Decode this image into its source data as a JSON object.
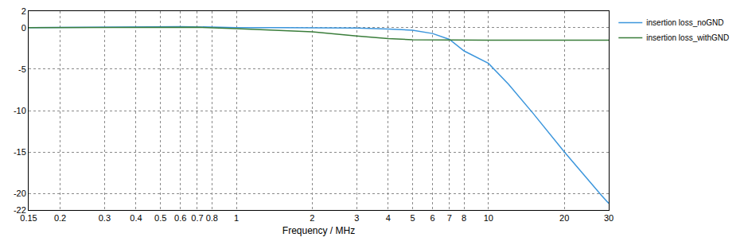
{
  "chart_data": {
    "type": "line",
    "x_label": "Frequency / MHz",
    "log": "x",
    "grid": true,
    "legend": "right",
    "xlim": [
      0.15,
      30
    ],
    "xticks": [
      0.15,
      0.2,
      0.3,
      0.4,
      0.5,
      0.6,
      0.7,
      0.8,
      1,
      2,
      3,
      4,
      5,
      6,
      7,
      8,
      10,
      20,
      30
    ],
    "ylim": [
      -22,
      2
    ],
    "yticks": [
      2,
      0,
      -5,
      -10,
      -15,
      -20,
      -22
    ],
    "series": [
      {
        "name": "insertion loss_noGND",
        "color": "#3c96dc",
        "x": [
          0.15,
          0.2,
          0.3,
          0.4,
          0.5,
          0.6,
          0.8,
          1,
          1.5,
          2,
          3,
          4,
          5,
          6,
          7,
          8,
          9,
          10,
          12,
          15,
          20,
          25,
          28,
          30
        ],
        "values": [
          0,
          0.02,
          0.08,
          0.12,
          0.13,
          0.12,
          0.08,
          0.02,
          0,
          0,
          -0.05,
          -0.15,
          -0.3,
          -0.7,
          -1.4,
          -2.8,
          -3.6,
          -4.3,
          -6.8,
          -10.3,
          -15,
          -18.5,
          -20.2,
          -21.2
        ]
      },
      {
        "name": "insertion loss_withGND",
        "color": "#3a7d3a",
        "x": [
          0.15,
          0.3,
          0.5,
          0.7,
          1,
          1.5,
          2,
          3,
          4,
          5,
          7,
          10,
          20,
          30
        ],
        "values": [
          0,
          0.05,
          0.08,
          0.05,
          -0.1,
          -0.3,
          -0.5,
          -1.0,
          -1.3,
          -1.45,
          -1.5,
          -1.5,
          -1.5,
          -1.5
        ]
      }
    ]
  }
}
